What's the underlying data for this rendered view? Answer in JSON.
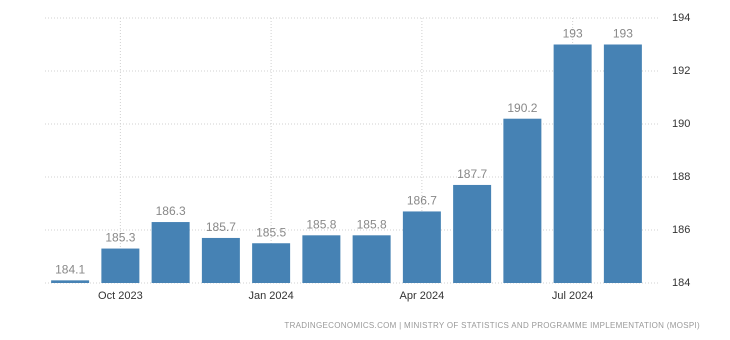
{
  "chart_data": {
    "type": "bar",
    "categories": [
      null,
      "Oct 2023",
      null,
      null,
      "Jan 2024",
      null,
      null,
      "Apr 2024",
      null,
      null,
      "Jul 2024",
      null
    ],
    "values": [
      184.1,
      185.3,
      186.3,
      185.7,
      185.5,
      185.8,
      185.8,
      186.7,
      187.7,
      190.2,
      193,
      193
    ],
    "color": "#4682b4",
    "ylim": [
      184,
      194
    ],
    "yticks": [
      184,
      186,
      188,
      190,
      192,
      194
    ],
    "grid": true,
    "source": "TRADINGECONOMICS.COM | MINISTRY OF STATISTICS AND PROGRAMME IMPLEMENTATION (MOSPI)"
  }
}
